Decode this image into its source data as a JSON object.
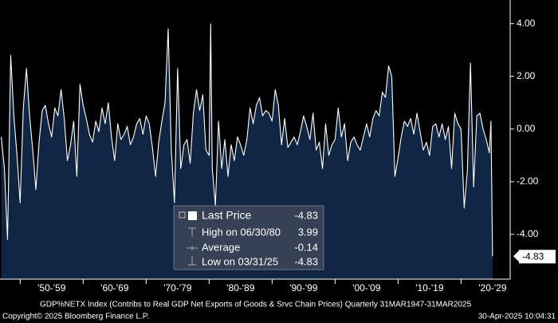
{
  "chart_data": {
    "type": "area-line",
    "xlim": [
      1946.8,
      2027.8
    ],
    "ylim": [
      -5.7,
      4.9
    ],
    "xticks": [
      {
        "value": 1950,
        "label": "'50-'59"
      },
      {
        "value": 1960,
        "label": "'60-'69"
      },
      {
        "value": 1970,
        "label": "'70-'79"
      },
      {
        "value": 1980,
        "label": "'80-'89"
      },
      {
        "value": 1990,
        "label": "'90-'99"
      },
      {
        "value": 2000,
        "label": "'00-'09"
      },
      {
        "value": 2010,
        "label": "'10-'19"
      },
      {
        "value": 2020,
        "label": "'20-'29"
      }
    ],
    "yticks": [
      {
        "value": 4,
        "label": "4.00"
      },
      {
        "value": 2,
        "label": "2.00"
      },
      {
        "value": 0,
        "label": "0.00"
      },
      {
        "value": -2,
        "label": "-2.00"
      },
      {
        "value": -4,
        "label": "-4.00"
      }
    ],
    "series": [
      {
        "color": "#ffffff",
        "fill": "#0f2744",
        "x": [
          1947,
          1947.5,
          1948,
          1948.5,
          1949,
          1949.5,
          1950,
          1950.5,
          1951,
          1951.5,
          1952,
          1952.5,
          1953,
          1953.5,
          1954,
          1954.5,
          1955,
          1955.5,
          1956,
          1956.5,
          1957,
          1957.5,
          1958,
          1958.5,
          1959,
          1959.5,
          1960,
          1960.5,
          1961,
          1961.5,
          1962,
          1962.5,
          1963,
          1963.5,
          1964,
          1964.5,
          1965,
          1965.5,
          1966,
          1966.5,
          1967,
          1967.5,
          1968,
          1968.5,
          1969,
          1969.5,
          1970,
          1970.5,
          1971,
          1971.5,
          1972,
          1972.5,
          1973,
          1973.5,
          1974,
          1974.5,
          1975,
          1975.5,
          1976,
          1976.5,
          1977,
          1977.5,
          1978,
          1978.5,
          1979,
          1979.5,
          1980,
          1980.25,
          1980.5,
          1981,
          1981.5,
          1982,
          1982.5,
          1983,
          1983.5,
          1984,
          1984.5,
          1985,
          1985.5,
          1986,
          1986.5,
          1987,
          1987.5,
          1988,
          1988.5,
          1989,
          1989.5,
          1990,
          1990.5,
          1991,
          1991.5,
          1992,
          1992.5,
          1993,
          1993.5,
          1994,
          1994.5,
          1995,
          1995.5,
          1996,
          1996.5,
          1997,
          1997.5,
          1998,
          1998.5,
          1999,
          1999.5,
          2000,
          2000.5,
          2001,
          2001.5,
          2002,
          2002.5,
          2003,
          2003.5,
          2004,
          2004.5,
          2005,
          2005.5,
          2006,
          2006.5,
          2007,
          2007.5,
          2008,
          2008.5,
          2009,
          2009.5,
          2010,
          2010.5,
          2011,
          2011.5,
          2012,
          2012.5,
          2013,
          2013.5,
          2014,
          2014.5,
          2015,
          2015.5,
          2016,
          2016.5,
          2017,
          2017.5,
          2018,
          2018.5,
          2019,
          2019.5,
          2020,
          2020.5,
          2021,
          2021.5,
          2022,
          2022.5,
          2023,
          2023.5,
          2024,
          2024.5,
          2024.75,
          2025
        ],
        "values": [
          -0.3,
          -1.5,
          -4.2,
          2.8,
          0.5,
          -1.0,
          -2.8,
          0.8,
          2.3,
          0.5,
          -0.8,
          -2.3,
          -0.5,
          0.7,
          0.9,
          0.2,
          -0.3,
          0.8,
          0.5,
          1.5,
          0.4,
          -1.2,
          -0.6,
          0.3,
          -1.8,
          1.7,
          0.9,
          0.4,
          -0.2,
          -0.5,
          0.3,
          -0.1,
          0.8,
          0.2,
          1.0,
          -0.3,
          -1.2,
          0.2,
          -0.4,
          -0.2,
          0.1,
          -0.6,
          -0.3,
          0.2,
          0.4,
          -0.2,
          0.5,
          0.2,
          -0.7,
          -1.8,
          -0.5,
          0.3,
          1.0,
          3.8,
          -0.8,
          -2.8,
          2.3,
          -1.5,
          -0.6,
          -0.4,
          -1.3,
          0.6,
          1.5,
          0.7,
          1.3,
          -0.8,
          -1.0,
          3.99,
          -1.5,
          -2.9,
          0.3,
          -1.5,
          -0.4,
          -1.8,
          -0.6,
          -1.2,
          -0.3,
          -0.6,
          -1.0,
          -0.4,
          0.8,
          0.2,
          0.9,
          1.2,
          0.5,
          0.7,
          0.6,
          0.3,
          1.5,
          0.9,
          -0.6,
          0.4,
          -0.7,
          -0.5,
          -0.3,
          -0.6,
          -0.1,
          0.5,
          0.1,
          -0.4,
          0.6,
          -0.8,
          -0.5,
          -1.5,
          0.2,
          -1.0,
          -0.6,
          -0.4,
          0.8,
          -0.3,
          0.2,
          -1.2,
          -0.5,
          -0.3,
          -0.6,
          -0.8,
          -0.3,
          0.2,
          -0.3,
          0.4,
          0.7,
          0.5,
          1.4,
          1.2,
          2.4,
          2.0,
          -1.8,
          -1.1,
          -0.3,
          0.3,
          0.1,
          0.4,
          -0.2,
          0.6,
          -0.1,
          -0.8,
          -0.5,
          -1.0,
          0.1,
          0.2,
          -0.3,
          0.2,
          -0.4,
          0.1,
          -1.5,
          0.6,
          0.2,
          0.0,
          -3.0,
          -1.6,
          2.5,
          -2.2,
          0.5,
          0.6,
          0.0,
          -0.4,
          -0.9,
          0.3,
          -4.83
        ]
      }
    ],
    "stats": [
      {
        "label": "Last Price",
        "value": -4.83
      },
      {
        "label": "High on 06/30/80",
        "value": 3.99
      },
      {
        "label": "Average",
        "value": -0.14
      },
      {
        "label": "Low on 03/31/25",
        "value": -4.83
      }
    ],
    "note": "GDP%NETX Index (Contribs to Real GDP Net Exports of Goods & Srvc Chain Prices)  Quarterly 31MAR1947-31MAR2025",
    "copyright": "Copyright© 2025 Bloomberg Finance L.P.",
    "timestamp": "30-Apr-2025 10:04:31"
  }
}
